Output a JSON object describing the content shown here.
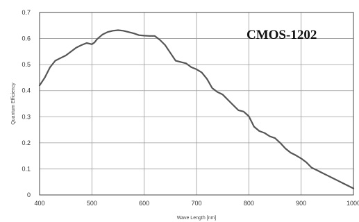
{
  "chart_data": {
    "type": "line",
    "annotation": "CMOS-1202",
    "xlabel": "Wave Length [nm]",
    "ylabel": "Quantum Efficiency",
    "xlim": [
      400,
      1000
    ],
    "ylim": [
      0,
      0.7
    ],
    "grid": true,
    "x_ticks": [
      "400",
      "500",
      "600",
      "700",
      "800",
      "900",
      "1000"
    ],
    "y_ticks": [
      "0",
      "0.1",
      "0.2",
      "0.3",
      "0.4",
      "0.5",
      "0.6",
      "0.7"
    ],
    "series": [
      {
        "color": "#555555",
        "points": [
          [
            400,
            0.42
          ],
          [
            410,
            0.45
          ],
          [
            420,
            0.49
          ],
          [
            430,
            0.515
          ],
          [
            440,
            0.525
          ],
          [
            450,
            0.535
          ],
          [
            460,
            0.55
          ],
          [
            470,
            0.565
          ],
          [
            480,
            0.575
          ],
          [
            490,
            0.583
          ],
          [
            500,
            0.578
          ],
          [
            505,
            0.585
          ],
          [
            510,
            0.598
          ],
          [
            520,
            0.615
          ],
          [
            530,
            0.625
          ],
          [
            540,
            0.63
          ],
          [
            550,
            0.632
          ],
          [
            560,
            0.63
          ],
          [
            570,
            0.625
          ],
          [
            580,
            0.62
          ],
          [
            590,
            0.613
          ],
          [
            600,
            0.611
          ],
          [
            610,
            0.61
          ],
          [
            620,
            0.61
          ],
          [
            630,
            0.595
          ],
          [
            640,
            0.575
          ],
          [
            650,
            0.545
          ],
          [
            660,
            0.515
          ],
          [
            670,
            0.51
          ],
          [
            680,
            0.505
          ],
          [
            690,
            0.49
          ],
          [
            700,
            0.482
          ],
          [
            710,
            0.47
          ],
          [
            720,
            0.445
          ],
          [
            730,
            0.41
          ],
          [
            740,
            0.395
          ],
          [
            750,
            0.385
          ],
          [
            760,
            0.365
          ],
          [
            770,
            0.345
          ],
          [
            780,
            0.325
          ],
          [
            790,
            0.32
          ],
          [
            800,
            0.302
          ],
          [
            810,
            0.262
          ],
          [
            820,
            0.245
          ],
          [
            830,
            0.238
          ],
          [
            840,
            0.225
          ],
          [
            850,
            0.218
          ],
          [
            860,
            0.2
          ],
          [
            870,
            0.178
          ],
          [
            880,
            0.162
          ],
          [
            890,
            0.152
          ],
          [
            900,
            0.14
          ],
          [
            910,
            0.125
          ],
          [
            920,
            0.105
          ],
          [
            930,
            0.095
          ],
          [
            940,
            0.085
          ],
          [
            950,
            0.075
          ],
          [
            960,
            0.065
          ],
          [
            970,
            0.055
          ],
          [
            980,
            0.045
          ],
          [
            990,
            0.035
          ],
          [
            1000,
            0.025
          ]
        ]
      }
    ]
  }
}
